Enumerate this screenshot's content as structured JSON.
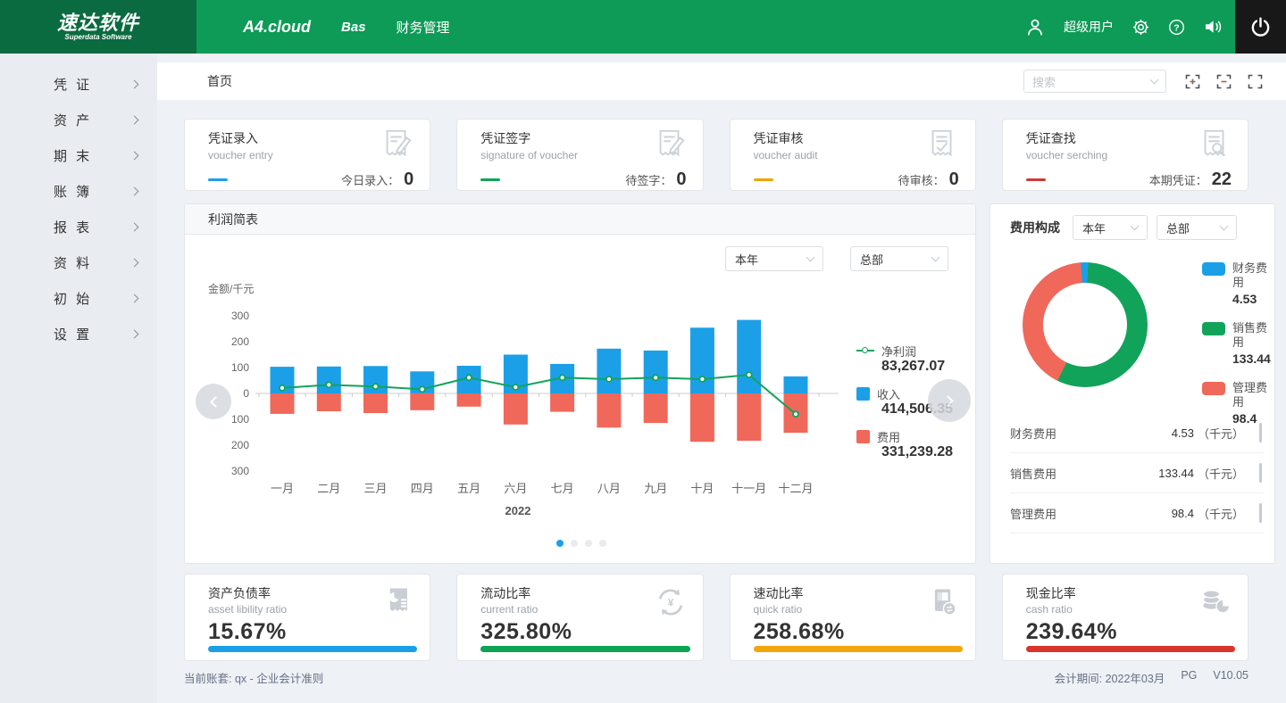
{
  "header": {
    "logo_title": "速达软件",
    "logo_subtitle": "Superdata Software",
    "product": "A4.cloud",
    "nav": [
      {
        "label": "Bas"
      },
      {
        "label": "财务管理"
      }
    ],
    "username": "超级用户"
  },
  "sidebar": {
    "items": [
      "凭 证",
      "资 产",
      "期 末",
      "账 簿",
      "报 表",
      "资 料",
      "初 始",
      "设 置"
    ]
  },
  "topbar": {
    "home_tab": "首页",
    "search_placeholder": "搜索"
  },
  "voucher_cards": [
    {
      "title": "凭证录入",
      "subtitle": "voucher entry",
      "accent": "#1ba0e8",
      "stat_label": "今日录入：",
      "stat_value": "0",
      "icon": "doc-pen-icon"
    },
    {
      "title": "凭证签字",
      "subtitle": "signature of voucher",
      "accent": "#12a35a",
      "stat_label": "待签字：",
      "stat_value": "0",
      "icon": "doc-pen-icon"
    },
    {
      "title": "凭证审核",
      "subtitle": "voucher audit",
      "accent": "#f0a200",
      "stat_label": "待审核：",
      "stat_value": "0",
      "icon": "doc-check-icon"
    },
    {
      "title": "凭证查找",
      "subtitle": "voucher serching",
      "accent": "#cc3b33",
      "stat_label": "本期凭证：",
      "stat_value": "22",
      "icon": "doc-search-icon"
    }
  ],
  "profit_panel": {
    "title": "利润简表",
    "filters": [
      "本年",
      "总部"
    ],
    "ylabel": "金额/千元",
    "year_label": "2022",
    "legend": [
      {
        "name": "净利润",
        "total": "83,267.07",
        "color": "#12a35a",
        "type": "line"
      },
      {
        "name": "收入",
        "total": "414,506.35",
        "color": "#1ba0e8",
        "type": "bar"
      },
      {
        "name": "费用",
        "total": "331,239.28",
        "color": "#f0685a",
        "type": "bar"
      }
    ],
    "pagination": {
      "total": 4,
      "active_index": 0,
      "active_color": "#1ba0e8",
      "inactive_color": "#e9ebee"
    }
  },
  "expense_panel": {
    "title": "费用构成",
    "filters": [
      "本年",
      "总部"
    ],
    "legend": [
      {
        "name": "财务费用",
        "value": "4.53",
        "color": "#1ba0e8"
      },
      {
        "name": "销售费用",
        "value": "133.44",
        "color": "#12a35a"
      },
      {
        "name": "管理费用",
        "value": "98.4",
        "color": "#f0685a"
      }
    ],
    "table": [
      {
        "name": "财务费用",
        "value": "4.53",
        "unit": "（千元）"
      },
      {
        "name": "销售费用",
        "value": "133.44",
        "unit": "（千元）"
      },
      {
        "name": "管理费用",
        "value": "98.4",
        "unit": "（千元）"
      }
    ]
  },
  "ratio_cards": [
    {
      "title": "资产负债率",
      "subtitle": "asset libility ratio",
      "value": "15.67%",
      "bar_color": "#1ba0e8",
      "icon": "doc-pie-icon"
    },
    {
      "title": "流动比率",
      "subtitle": "current ratio",
      "value": "325.80%",
      "bar_color": "#0da453",
      "icon": "refresh-yen-icon"
    },
    {
      "title": "速动比率",
      "subtitle": "quick ratio",
      "value": "258.68%",
      "bar_color": "#f2a60d",
      "icon": "card-transfer-icon"
    },
    {
      "title": "现金比率",
      "subtitle": "cash ratio",
      "value": "239.64%",
      "bar_color": "#d9352a",
      "icon": "coins-pie-icon"
    }
  ],
  "footer": {
    "left": "当前账套: qx - 企业会计准则",
    "right_period": "会计期间: 2022年03月",
    "right_db": "PG",
    "right_version": "V10.05"
  },
  "chart_data": [
    {
      "type": "bar",
      "title": "利润简表",
      "categories": [
        "一月",
        "二月",
        "三月",
        "四月",
        "五月",
        "六月",
        "七月",
        "八月",
        "九月",
        "十月",
        "十一月",
        "十二月"
      ],
      "x_axis_name": "2022",
      "ylabel": "金额/千元",
      "ylim": [
        -300,
        300
      ],
      "y_ticks": [
        300,
        200,
        100,
        0,
        -100,
        -200,
        -300
      ],
      "grid": false,
      "legend_position": "right",
      "series": [
        {
          "name": "收入",
          "type": "bar",
          "color": "#1ba0e8",
          "total": "414,506.35",
          "values": [
            103,
            104,
            106,
            85,
            107,
            150,
            114,
            173,
            166,
            254,
            284,
            66
          ]
        },
        {
          "name": "费用",
          "type": "bar",
          "color": "#f0685a",
          "total": "331,239.28",
          "values": [
            -79,
            -69,
            -76,
            -65,
            -51,
            -120,
            -71,
            -132,
            -114,
            -187,
            -183,
            -152
          ]
        },
        {
          "name": "净利润",
          "type": "line",
          "color": "#12a35a",
          "total": "83,267.07",
          "values": [
            21,
            33,
            27,
            16,
            61,
            24,
            61,
            55,
            61,
            55,
            72,
            -80
          ]
        }
      ]
    },
    {
      "type": "pie",
      "title": "费用构成",
      "labels": [
        "财务费用",
        "销售费用",
        "管理费用"
      ],
      "values": [
        4.53,
        133.44,
        98.4
      ],
      "unit": "千元",
      "colors": [
        "#1ba0e8",
        "#12a35a",
        "#f0685a"
      ],
      "donut": true
    }
  ]
}
